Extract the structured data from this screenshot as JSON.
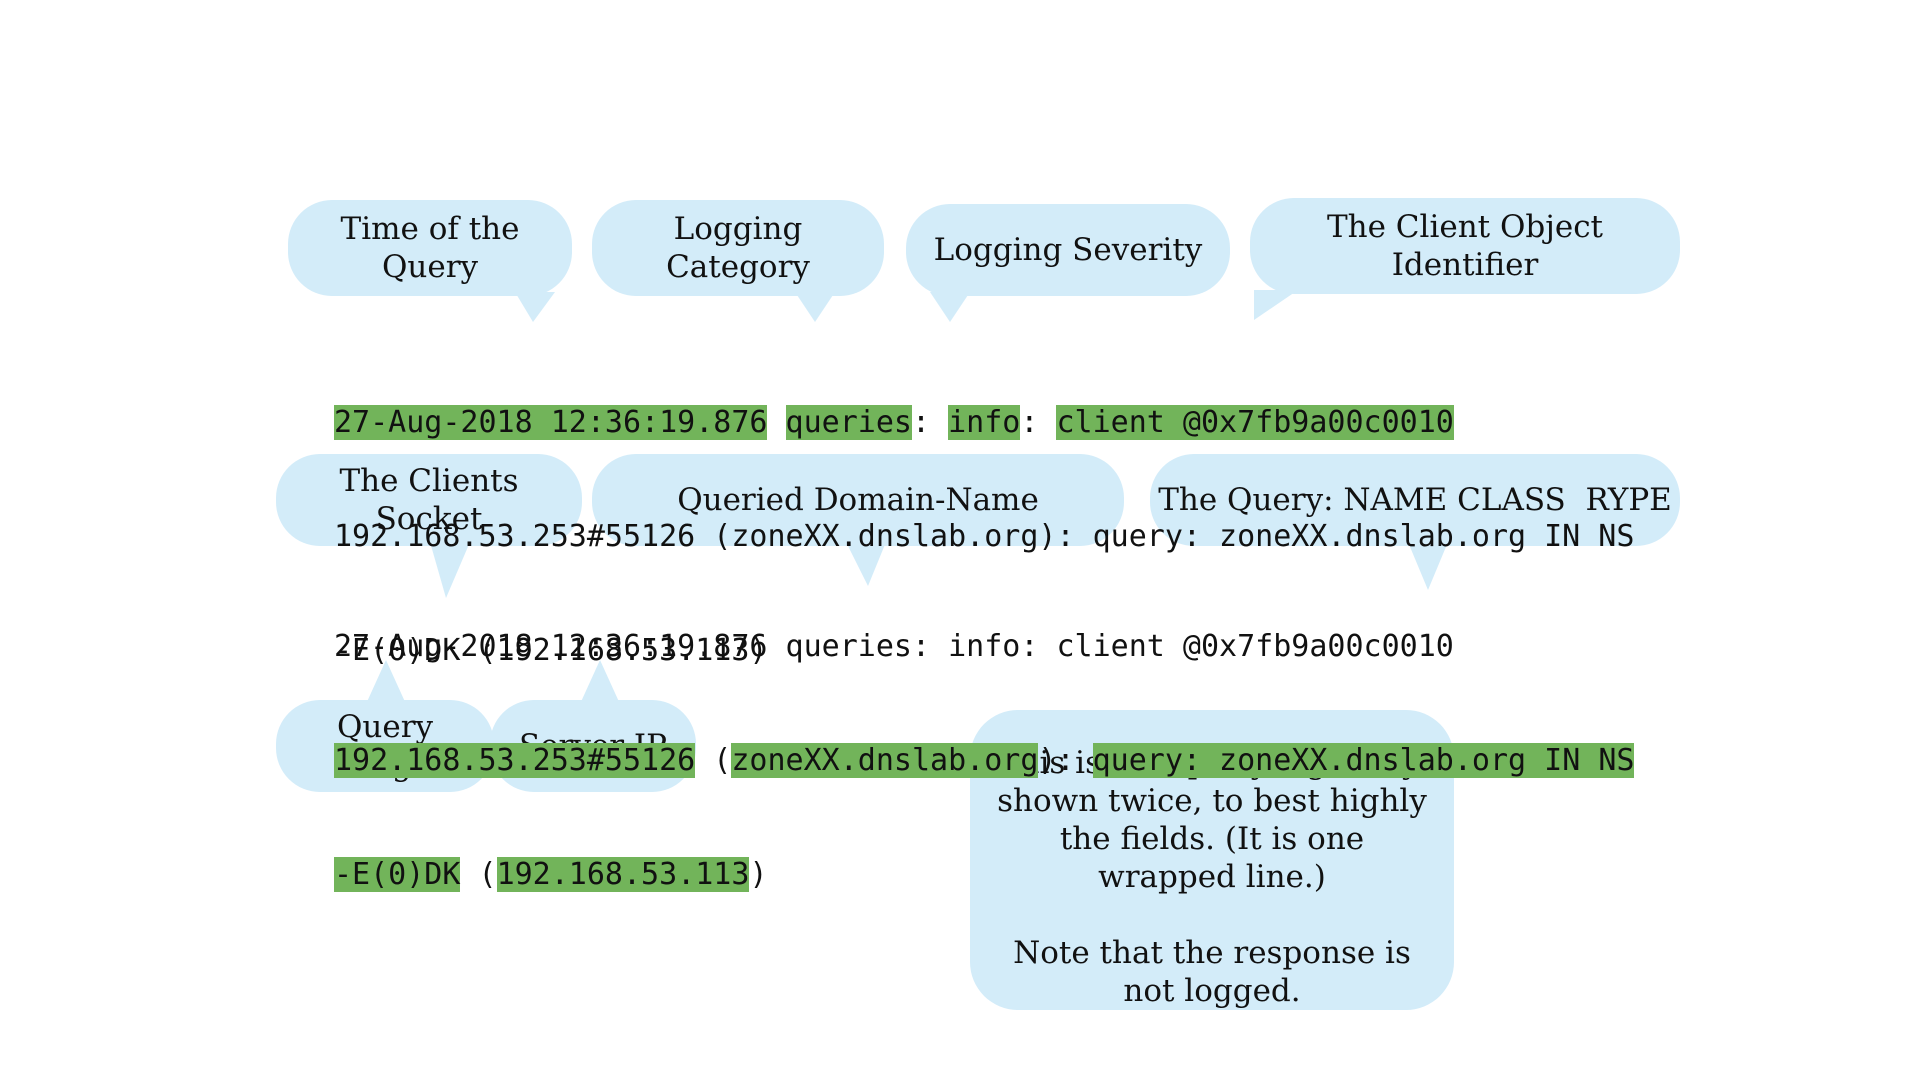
{
  "colors": {
    "bubble": "#d3ecf9",
    "highlight": "#72b45a",
    "text": "#111111"
  },
  "callouts": {
    "time_of_query": "Time of the Query",
    "logging_category": "Logging Category",
    "logging_severity": "Logging Severity",
    "client_object_identifier": "The Client Object Identifier",
    "clients_socket": "The Clients Socket",
    "queried_domain_name": "Queried Domain-Name",
    "query_name_class_type": "The Query: NAME CLASS  RYPE",
    "query_flags": "Query Flags",
    "server_ip": "Server IP"
  },
  "log_entry_1": {
    "line1": {
      "timestamp": "27-Aug-2018 12:36:19.876",
      "category": "queries",
      "sep1": ":",
      "severity": "info",
      "sep2": ":",
      "client_id": "client @0x7fb9a00c0010"
    },
    "line2": "192.168.53.253#55126 (zoneXX.dnslab.org): query: zoneXX.dnslab.org IN NS",
    "line3": "-E(0)DK (192.168.53.113)"
  },
  "log_entry_2": {
    "line1": "27-Aug-2018 12:36:19.876 queries: info: client @0x7fb9a00c0010",
    "line2": {
      "socket": "192.168.53.253#55126",
      "paren_open": "(",
      "domain": "zoneXX.dnslab.org",
      "paren_close": "):",
      "query": "query: zoneXX.dnslab.org IN NS"
    },
    "line3": {
      "flags": "-E(0)DK",
      "paren_open": "(",
      "server_ip": "192.168.53.113",
      "paren_close": ")"
    }
  },
  "note": {
    "paragraph1": "This is one query log entry, shown twice, to best highly the fields. (It is one wrapped line.)",
    "paragraph2": "Note that the response is not logged."
  }
}
